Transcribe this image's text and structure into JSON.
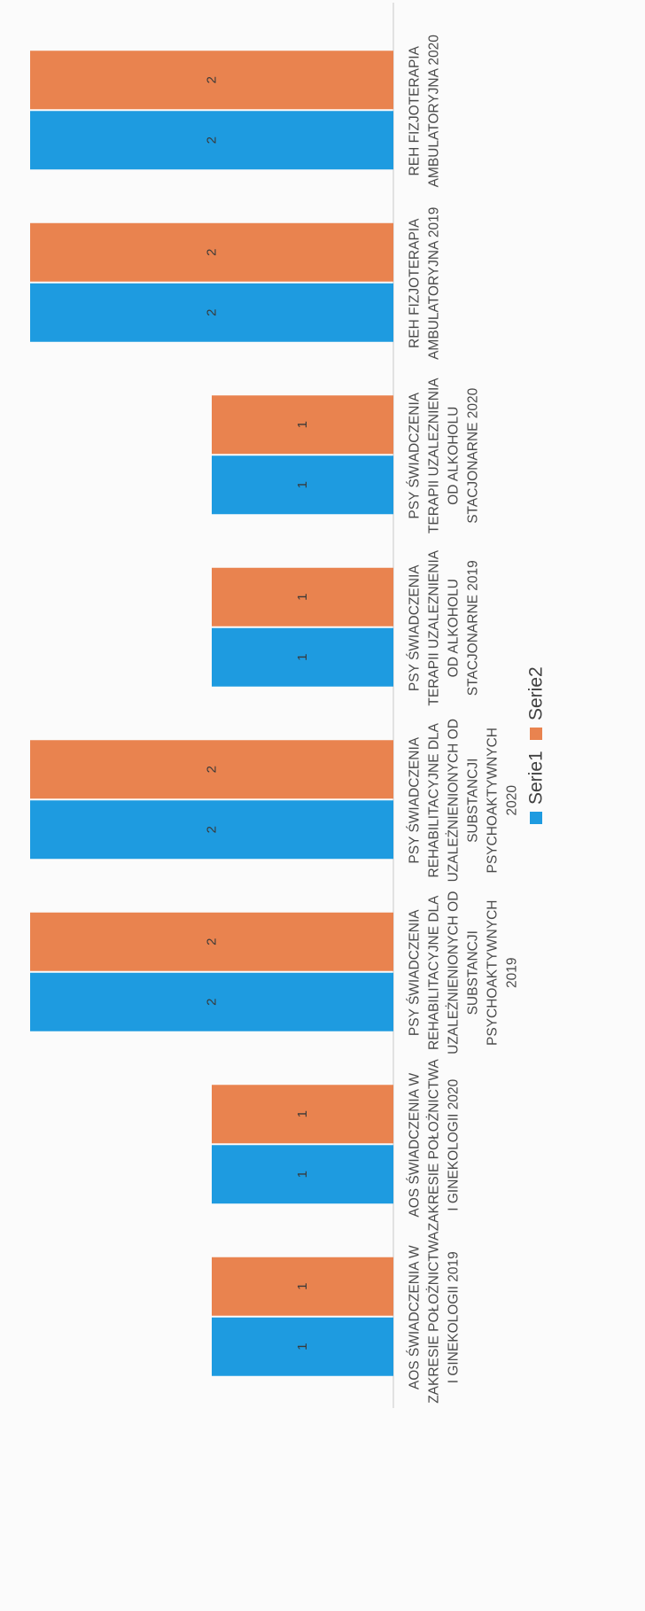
{
  "chart_data": {
    "type": "bar",
    "orientation": "horizontal",
    "categories": [
      [
        "AOS ŚWIADCZENIA W",
        "ZAKRESIE POŁOŻNICTWA",
        "I GINEKOLOGII 2019"
      ],
      [
        "AOS ŚWIADCZENIA W",
        "ZAKRESIE POŁOŻNICTWA",
        "I GINEKOLOGII 2020"
      ],
      [
        "PSY ŚWIADCZENIA",
        "REHABILITACYJNE DLA",
        "UZALEŻNIENIONYCH OD",
        "SUBSTANCJI",
        "PSYCHOAKTYWNYCH",
        "2019"
      ],
      [
        "PSY ŚWIADCZENIA",
        "REHABILITACYJNE DLA",
        "UZALEŻNIENIONYCH OD",
        "SUBSTANCJI",
        "PSYCHOAKTYWNYCH",
        "2020"
      ],
      [
        "PSY ŚWIADCZENIA",
        "TERAPII UZALEZNIENIA",
        "OD ALKOHOLU",
        "STACJONARNE 2019"
      ],
      [
        "PSY ŚWIADCZENIA",
        "TERAPII UZALEZNIENIA",
        "OD ALKOHOLU",
        "STACJONARNE 2020"
      ],
      [
        "REH FIZJOTERAPIA",
        "AMBULATORYJNA 2019"
      ],
      [
        "REH FIZJOTERAPIA",
        "AMBULATORYJNA 2020"
      ]
    ],
    "series": [
      {
        "name": "Serie1",
        "color": "#1e9be0",
        "values": [
          1,
          1,
          2,
          2,
          1,
          1,
          2,
          2
        ]
      },
      {
        "name": "Serie2",
        "color": "#e9834f",
        "values": [
          1,
          1,
          2,
          2,
          1,
          1,
          2,
          2
        ]
      }
    ],
    "data_labels": true,
    "xlim": [
      0,
      2
    ],
    "legend_position": "bottom",
    "grid": false
  }
}
